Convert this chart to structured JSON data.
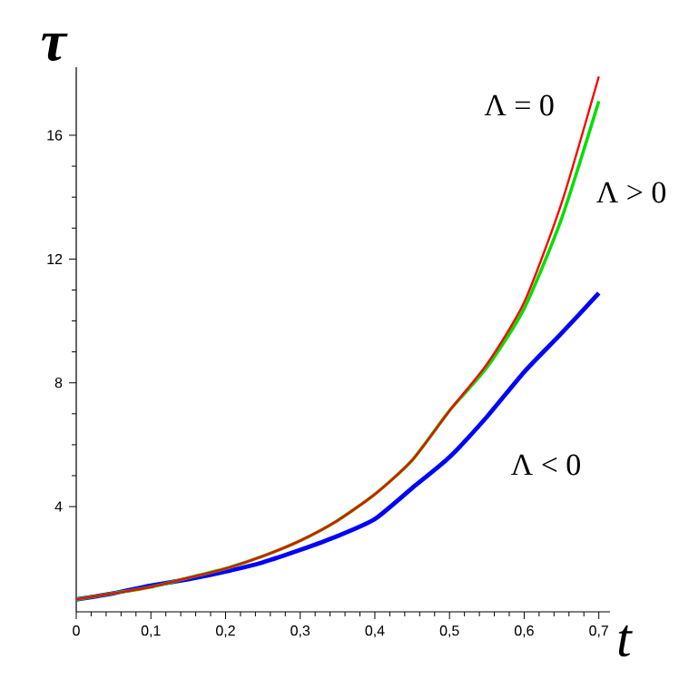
{
  "chart_data": {
    "type": "line",
    "xlabel": "t",
    "ylabel": "τ",
    "xlim": [
      0,
      0.715
    ],
    "ylim": [
      0.6,
      18.2
    ],
    "xticks": [
      0,
      {
        "value": 0.1,
        "label": "0,1"
      },
      {
        "value": 0.2,
        "label": "0,2"
      },
      {
        "value": 0.3,
        "label": "0,3"
      },
      {
        "value": 0.4,
        "label": "0,4"
      },
      {
        "value": 0.5,
        "label": "0,5"
      },
      {
        "value": 0.6,
        "label": "0,6"
      },
      {
        "value": 0.7,
        "label": "0,7"
      }
    ],
    "yticks": [
      4,
      8,
      12,
      16
    ],
    "x": [
      0,
      0.05,
      0.1,
      0.15,
      0.2,
      0.25,
      0.3,
      0.35,
      0.4,
      0.45,
      0.5,
      0.55,
      0.6,
      0.65,
      0.7
    ],
    "series": [
      {
        "color": "#0000ff",
        "values": [
          1.0,
          1.2,
          1.45,
          1.65,
          1.9,
          2.2,
          2.6,
          3.05,
          3.6,
          4.6,
          5.6,
          6.9,
          8.35,
          9.6,
          10.9
        ]
      },
      {
        "color": "#00e000",
        "values": [
          1.0,
          1.2,
          1.4,
          1.7,
          2.0,
          2.4,
          2.9,
          3.55,
          4.4,
          5.5,
          7.1,
          8.5,
          10.4,
          13.3,
          17.1
        ]
      },
      {
        "color": "#ff0000",
        "values": [
          1.0,
          1.2,
          1.4,
          1.7,
          2.0,
          2.4,
          2.9,
          3.55,
          4.4,
          5.5,
          7.1,
          8.6,
          10.6,
          13.8,
          17.9
        ]
      }
    ],
    "annotations": [
      "Λ = 0",
      "Λ > 0",
      "Λ < 0"
    ],
    "grid": false,
    "marker": "none",
    "line_style": "solid"
  }
}
